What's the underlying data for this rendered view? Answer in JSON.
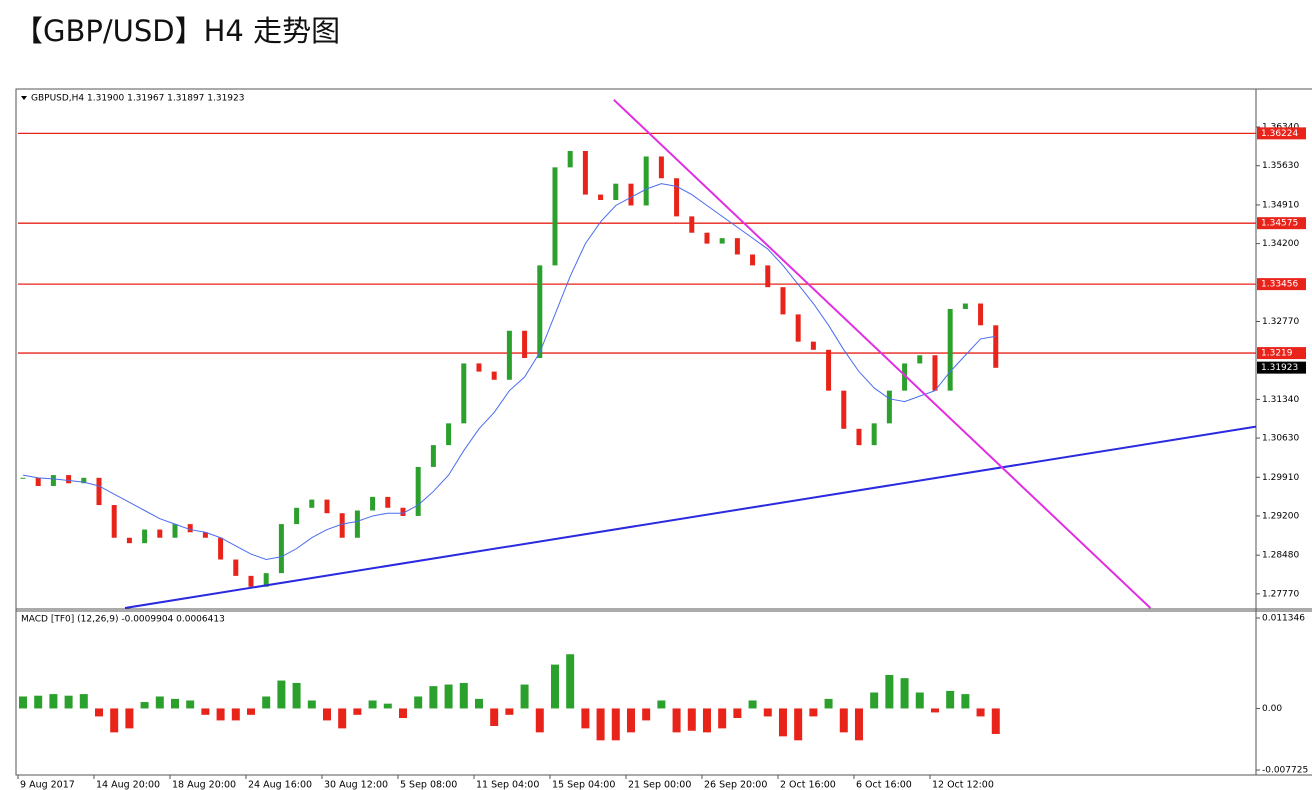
{
  "chart_data": [
    {
      "type": "candlestick",
      "title": "【GBP/USD】H4 走势图",
      "info": "GBPUSD,H4  1.31900 1.31967 1.31897 1.31923",
      "up_color": "#2ca02c",
      "down_color": "#e8231a",
      "ma_color": "#4a6cf0",
      "values": [
        1.299,
        1.2975,
        1.2995,
        1.298,
        1.299,
        1.294,
        1.288,
        1.287,
        1.2895,
        1.288,
        1.2905,
        1.289,
        1.288,
        1.284,
        1.281,
        1.279,
        1.2815,
        1.2905,
        1.2935,
        1.295,
        1.2925,
        1.288,
        1.293,
        1.2955,
        1.2935,
        1.292,
        1.301,
        1.305,
        1.309,
        1.32,
        1.3185,
        1.317,
        1.326,
        1.321,
        1.338,
        1.356,
        1.359,
        1.351,
        1.35,
        1.353,
        1.349,
        1.358,
        1.354,
        1.347,
        1.344,
        1.342,
        1.343,
        1.34,
        1.338,
        1.334,
        1.329,
        1.324,
        1.3225,
        1.315,
        1.308,
        1.305,
        1.309,
        1.315,
        1.32,
        1.3215,
        1.315,
        1.33,
        1.331,
        1.327,
        1.3192
      ],
      "ma": [
        1.2995,
        1.299,
        1.2988,
        1.2985,
        1.2982,
        1.2975,
        1.296,
        1.2945,
        1.293,
        1.2915,
        1.2905,
        1.2895,
        1.289,
        1.288,
        1.2865,
        1.285,
        1.284,
        1.2845,
        1.286,
        1.288,
        1.2895,
        1.2905,
        1.291,
        1.292,
        1.2925,
        1.2925,
        1.294,
        1.2965,
        1.2995,
        1.304,
        1.308,
        1.311,
        1.315,
        1.3175,
        1.322,
        1.329,
        1.336,
        1.342,
        1.346,
        1.349,
        1.3505,
        1.352,
        1.353,
        1.3525,
        1.351,
        1.349,
        1.347,
        1.345,
        1.343,
        1.341,
        1.338,
        1.3345,
        1.331,
        1.327,
        1.3225,
        1.3185,
        1.3155,
        1.3135,
        1.313,
        1.314,
        1.315,
        1.3185,
        1.3215,
        1.3245,
        1.325
      ],
      "xlim": [
        0,
        81.45
      ],
      "xticks": [
        {
          "value": 0,
          "label": "9 Aug 2017"
        },
        {
          "value": 5,
          "label": "14 Aug 20:00"
        },
        {
          "value": 10,
          "label": "18 Aug 20:00"
        },
        {
          "value": 15,
          "label": "24 Aug 16:00"
        },
        {
          "value": 20,
          "label": "30 Aug 12:00"
        },
        {
          "value": 25,
          "label": "5 Sep 08:00"
        },
        {
          "value": 30,
          "label": "11 Sep 04:00"
        },
        {
          "value": 35,
          "label": "15 Sep 04:00"
        },
        {
          "value": 40,
          "label": "21 Sep 00:00"
        },
        {
          "value": 45,
          "label": "26 Sep 20:00"
        },
        {
          "value": 50,
          "label": "2 Oct 16:00"
        },
        {
          "value": 55,
          "label": "6 Oct 16:00"
        },
        {
          "value": 60,
          "label": "12 Oct 12:00"
        }
      ],
      "ylim": [
        1.2751,
        1.3702
      ],
      "yticks": [
        {
          "value": 1.3634,
          "label": "1.36340"
        },
        {
          "value": 1.3563,
          "label": "1.35630"
        },
        {
          "value": 1.3491,
          "label": "1.34910"
        },
        {
          "value": 1.342,
          "label": "1.34200"
        },
        {
          "value": 1.3277,
          "label": "1.32770"
        },
        {
          "value": 1.3134,
          "label": "1.31340"
        },
        {
          "value": 1.3063,
          "label": "1.30630"
        },
        {
          "value": 1.2991,
          "label": "1.29910"
        },
        {
          "value": 1.292,
          "label": "1.29200"
        },
        {
          "value": 1.2848,
          "label": "1.28480"
        },
        {
          "value": 1.2777,
          "label": "1.27770"
        }
      ],
      "levels": [
        1.36224,
        1.34575,
        1.33456,
        1.3219
      ],
      "level_color": "#e8231a",
      "last_price": 1.31923,
      "trendlines": [
        {
          "color": "#2a2ae0",
          "x": [
            7.04,
            81.45
          ],
          "y": [
            1.2751,
            1.3084
          ]
        },
        {
          "color": "#e22ee2",
          "x": [
            39.2,
            74.5
          ],
          "y": [
            1.3684,
            1.2751
          ]
        }
      ]
    },
    {
      "type": "bar",
      "title": "MACD [TF0] (12,26,9) -0.0009904 0.0006413",
      "up_color": "#2ca02c",
      "down_color": "#e8231a",
      "values": [
        0.0015,
        0.0016,
        0.0018,
        0.0016,
        0.0018,
        -0.001,
        -0.003,
        -0.0025,
        0.0008,
        0.0015,
        0.0012,
        0.001,
        -0.0008,
        -0.0015,
        -0.0015,
        -0.0008,
        0.0015,
        0.0035,
        0.0032,
        0.001,
        -0.0015,
        -0.0025,
        -0.0008,
        0.001,
        0.0006,
        -0.0012,
        0.0015,
        0.0028,
        0.003,
        0.0032,
        0.0012,
        -0.0022,
        -0.0008,
        0.003,
        -0.003,
        0.0055,
        0.0068,
        -0.0025,
        -0.004,
        -0.004,
        -0.003,
        -0.0015,
        0.001,
        -0.003,
        -0.0028,
        -0.003,
        -0.0025,
        -0.0012,
        0.001,
        -0.001,
        -0.0035,
        -0.004,
        -0.001,
        0.0012,
        -0.003,
        -0.004,
        0.002,
        0.0042,
        0.0038,
        0.002,
        -0.0005,
        0.0022,
        0.0018,
        -0.001,
        -0.0032
      ],
      "ylim": [
        -0.00835,
        0.0121
      ],
      "yticks": [
        0.011346,
        {
          "value": 0,
          "label": "0.00"
        },
        -0.007725
      ]
    }
  ]
}
